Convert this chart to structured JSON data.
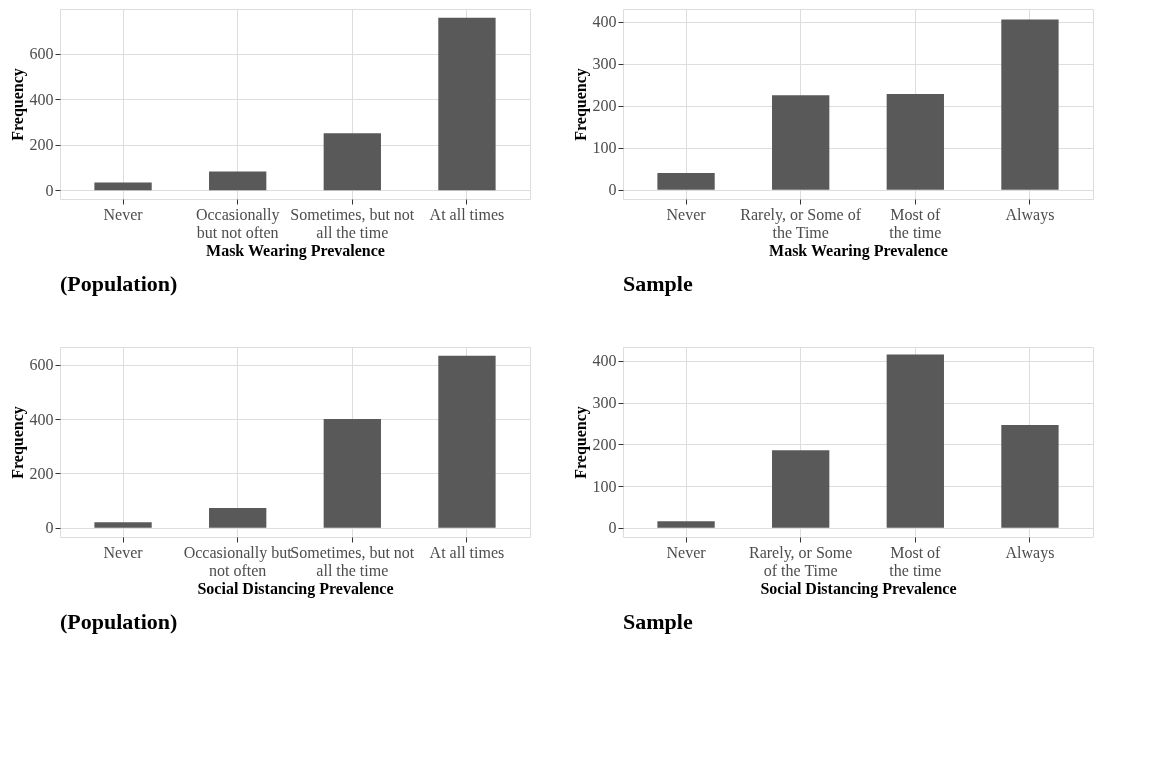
{
  "chart_data": [
    {
      "type": "bar",
      "title": "(Population)",
      "xlabel": "Mask Wearing Prevalence",
      "ylabel": "Frequency",
      "categories": [
        "Never",
        "Occasionally\nbut not often",
        "Sometimes, but not\nall the time",
        "At all times"
      ],
      "values": [
        35,
        83,
        251,
        759
      ],
      "color": "#595959",
      "ylim": [
        -38,
        797
      ],
      "yticks": [
        0,
        200,
        400,
        600
      ],
      "grid": true
    },
    {
      "type": "bar",
      "title": "Sample",
      "xlabel": "Mask Wearing Prevalence",
      "ylabel": "Frequency",
      "categories": [
        "Never",
        "Rarely, or Some of\nthe Time",
        "Most of\nthe time",
        "Always"
      ],
      "values": [
        40,
        225,
        228,
        405
      ],
      "color": "#595959",
      "ylim": [
        -22,
        430
      ],
      "yticks": [
        0,
        100,
        200,
        300,
        400
      ],
      "grid": true
    },
    {
      "type": "bar",
      "title": "(Population)",
      "xlabel": "Social Distancing Prevalence",
      "ylabel": "Frequency",
      "categories": [
        "Never",
        "Occasionally but\nnot often",
        "Sometimes, but not\nall the time",
        "At all times"
      ],
      "values": [
        20,
        73,
        400,
        633
      ],
      "color": "#595959",
      "ylim": [
        -34,
        665
      ],
      "yticks": [
        0,
        200,
        400,
        600
      ],
      "grid": true
    },
    {
      "type": "bar",
      "title": "Sample",
      "xlabel": "Social Distancing Prevalence",
      "ylabel": "Frequency",
      "categories": [
        "Never",
        "Rarely, or Some\nof the Time",
        "Most of\nthe time",
        "Always"
      ],
      "values": [
        16,
        186,
        415,
        246
      ],
      "color": "#595959",
      "ylim": [
        -22,
        433
      ],
      "yticks": [
        0,
        100,
        200,
        300,
        400
      ],
      "grid": true
    }
  ]
}
